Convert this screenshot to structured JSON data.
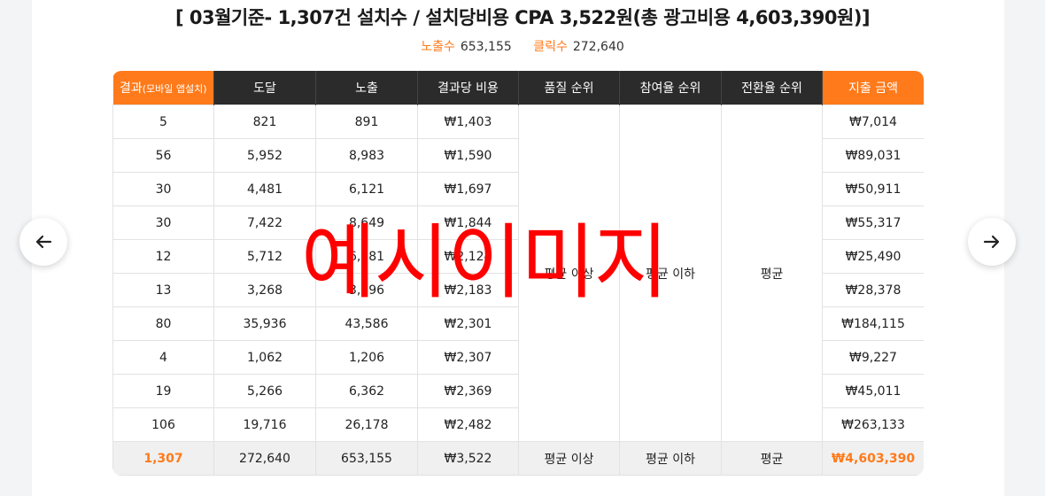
{
  "headline": "[ 03월기준- 1,307건 설치수 / 설치당비용 CPA 3,522원(총 광고비용 4,603,390원)]",
  "stats": {
    "impressions_label": "노출수",
    "impressions_value": "653,155",
    "clicks_label": "클릭수",
    "clicks_value": "272,640"
  },
  "table": {
    "headers": {
      "result_main": "결과",
      "result_sub": "(모바일 앱설치)",
      "reach": "도달",
      "impressions": "노출",
      "cost_per_result": "결과당 비용",
      "quality_rank": "품질 순위",
      "engagement_rank": "참여율 순위",
      "conversion_rank": "전환율 순위",
      "spend": "지출 금액"
    },
    "rows": [
      {
        "result": "5",
        "reach": "821",
        "impressions": "891",
        "cpr": "₩1,403",
        "spend": "₩7,014"
      },
      {
        "result": "56",
        "reach": "5,952",
        "impressions": "8,983",
        "cpr": "₩1,590",
        "spend": "₩89,031"
      },
      {
        "result": "30",
        "reach": "4,481",
        "impressions": "6,121",
        "cpr": "₩1,697",
        "spend": "₩50,911"
      },
      {
        "result": "30",
        "reach": "7,422",
        "impressions": "8,649",
        "cpr": "₩1,844",
        "spend": "₩55,317"
      },
      {
        "result": "12",
        "reach": "5,712",
        "impressions": "6,881",
        "cpr": "₩2,124",
        "spend": "₩25,490"
      },
      {
        "result": "13",
        "reach": "3,268",
        "impressions": "3,396",
        "cpr": "₩2,183",
        "spend": "₩28,378"
      },
      {
        "result": "80",
        "reach": "35,936",
        "impressions": "43,586",
        "cpr": "₩2,301",
        "spend": "₩184,115"
      },
      {
        "result": "4",
        "reach": "1,062",
        "impressions": "1,206",
        "cpr": "₩2,307",
        "spend": "₩9,227"
      },
      {
        "result": "19",
        "reach": "5,266",
        "impressions": "6,362",
        "cpr": "₩2,369",
        "spend": "₩45,011"
      },
      {
        "result": "106",
        "reach": "19,716",
        "impressions": "26,178",
        "cpr": "₩2,482",
        "spend": "₩263,133"
      }
    ],
    "merged": {
      "quality_rank": "평균 이상",
      "engagement_rank": "평균 이하",
      "conversion_rank": "평균"
    },
    "total": {
      "result": "1,307",
      "reach": "272,640",
      "impressions": "653,155",
      "cpr": "₩3,522",
      "quality_rank": "평균 이상",
      "engagement_rank": "평균 이하",
      "conversion_rank": "평균",
      "spend": "₩4,603,390"
    }
  },
  "watermark": "예시이미지",
  "nav": {
    "prev_icon": "arrow-left-icon",
    "next_icon": "arrow-right-icon"
  },
  "colors": {
    "accent": "#ff7a1a",
    "header_bg": "#2b2b2b",
    "watermark": "#ff0000"
  }
}
